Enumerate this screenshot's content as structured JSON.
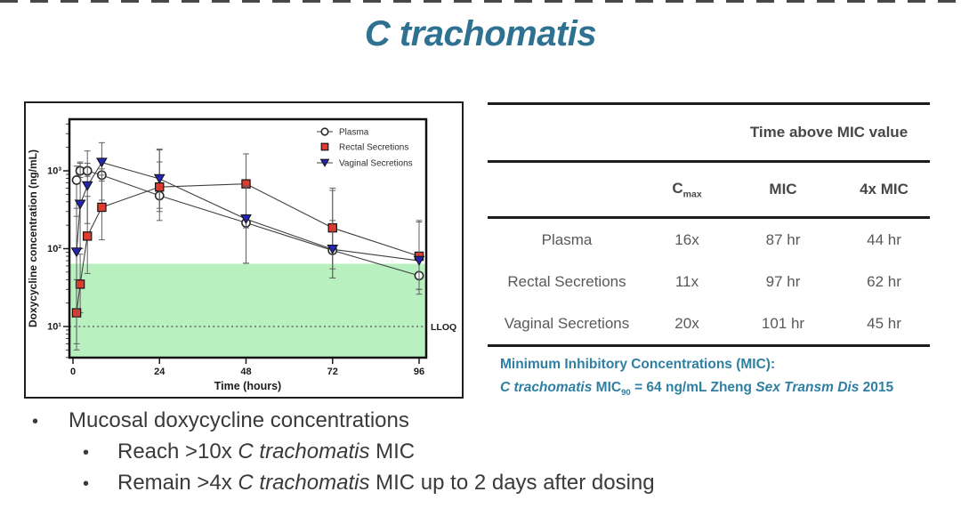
{
  "slide": {
    "title": "C trachomatis"
  },
  "chart": {
    "ylabel": "Doxycycline concentration (ng/mL)",
    "xlabel": "Time (hours)",
    "lloq_label": "LLOQ"
  },
  "chart_data": {
    "type": "line",
    "title": "",
    "xlabel": "Time (hours)",
    "ylabel": "Doxycycline concentration (ng/mL)",
    "y_scale": "log10",
    "xlim": [
      -1.5,
      97.5
    ],
    "ylim": [
      4,
      4600
    ],
    "x_ticks": [
      0,
      24,
      48,
      72,
      96
    ],
    "y_ticks": [
      {
        "value": 1000,
        "label": "10³"
      },
      {
        "value": 100,
        "label": "10²"
      },
      {
        "value": 10,
        "label": "10¹"
      }
    ],
    "grid": false,
    "legend_position": "top-right-inside",
    "lloq_line": {
      "value": 10,
      "style": "dotted",
      "label": "LLOQ"
    },
    "shaded_region": {
      "y_min": 4,
      "y_max": 64,
      "color": "#b8f0bf",
      "meaning": "below C trachomatis MIC90 (64 ng/mL)"
    },
    "error_bars": "shown, values approximate",
    "series": [
      {
        "name": "Plasma",
        "marker": "open-circle",
        "color": "#ffffff",
        "x": [
          1,
          2,
          4,
          8,
          24,
          48,
          72,
          96
        ],
        "y": [
          760,
          1000,
          1000,
          880,
          480,
          215,
          95,
          45
        ],
        "err_lo": [
          260,
          820,
          850,
          740,
          230,
          185,
          42,
          30
        ],
        "err_hi": [
          1150,
          1250,
          1250,
          1060,
          1300,
          270,
          230,
          70
        ]
      },
      {
        "name": "Rectal Secretions",
        "marker": "filled-square",
        "color": "#e23b2e",
        "x": [
          1,
          2,
          4,
          8,
          24,
          48,
          72,
          96
        ],
        "y": [
          15,
          35,
          145,
          340,
          620,
          680,
          185,
          80
        ],
        "err_lo": [
          6,
          15,
          48,
          130,
          300,
          65,
          55,
          26
        ],
        "err_hi": [
          40,
          85,
          470,
          880,
          1900,
          1650,
          600,
          230
        ]
      },
      {
        "name": "Vaginal Secretions",
        "marker": "filled-triangle-down",
        "color": "#2426ad",
        "x": [
          1,
          2,
          4,
          8,
          24,
          48,
          72,
          96
        ],
        "y": [
          90,
          370,
          640,
          1280,
          790,
          240,
          98,
          70
        ],
        "err_lo": [
          5,
          100,
          210,
          420,
          330,
          65,
          42,
          30
        ],
        "err_hi": [
          330,
          1300,
          1800,
          2300,
          1850,
          640,
          560,
          220
        ]
      }
    ]
  },
  "table": {
    "span_header": "Time above MIC value",
    "columns": {
      "cmax_base": "C",
      "cmax_sub": "max",
      "mic": "MIC",
      "four_x_mic": "4x MIC"
    },
    "rows": [
      {
        "label": "Plasma",
        "cmax": "16x",
        "mic": "87 hr",
        "four_x_mic": "44 hr"
      },
      {
        "label": "Rectal Secretions",
        "cmax": "11x",
        "mic": "97 hr",
        "four_x_mic": "62 hr"
      },
      {
        "label": "Vaginal Secretions",
        "cmax": "20x",
        "mic": "101 hr",
        "four_x_mic": "45 hr"
      }
    ]
  },
  "footnote": {
    "line1": "Minimum Inhibitory Concentrations (MIC):",
    "line2": {
      "italic1": "C trachomatis",
      "mid1": " MIC",
      "sub": "90",
      "mid2": " = 64 ng/mL Zheng ",
      "italic2": "Sex Transm Dis",
      "end": " 2015"
    }
  },
  "bullets": {
    "marker": "•",
    "main": "Mucosal doxycycline concentrations",
    "sub1": {
      "pre": "Reach >10x ",
      "italic": "C trachomatis",
      "post": " MIC"
    },
    "sub2": {
      "pre": "Remain >4x ",
      "italic": "C trachomatis",
      "post": " MIC up to 2 days after dosing"
    }
  },
  "colors": {
    "title": "#2e7191",
    "footnote": "#2f7fa2",
    "shaded_green": "#b8f0bf",
    "rectal_red": "#e23b2e",
    "vaginal_navy": "#2426ad"
  }
}
